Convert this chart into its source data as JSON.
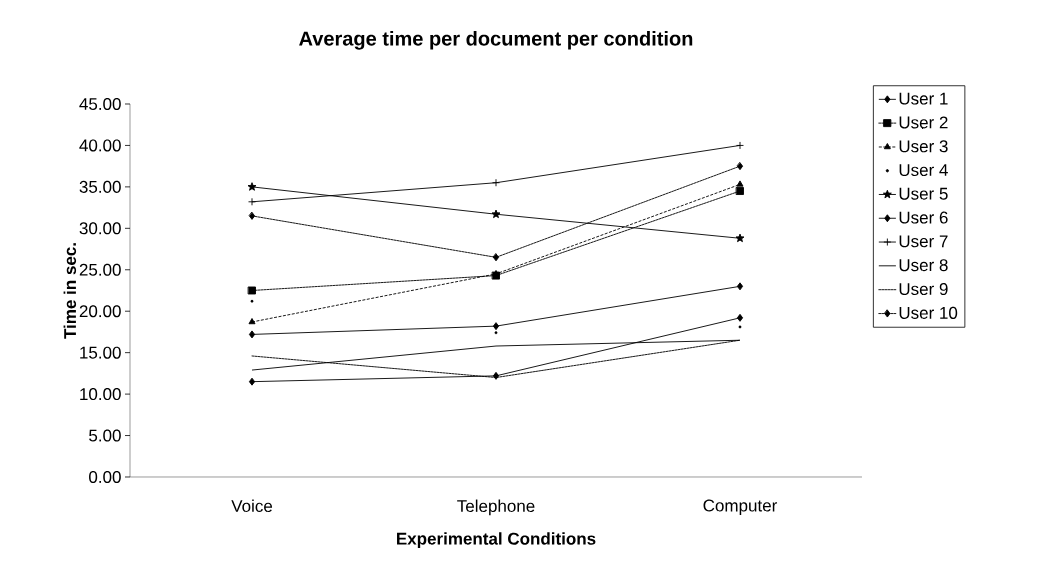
{
  "chart_data": {
    "type": "line",
    "title": "Average time per document per condition",
    "xlabel": "Experimental Conditions",
    "ylabel": "Time in sec.",
    "categories": [
      "Voice",
      "Telephone",
      "Computer"
    ],
    "ylim": [
      0,
      45
    ],
    "yticks": [
      {
        "value": 0,
        "label": "0.00"
      },
      {
        "value": 5,
        "label": "5.00"
      },
      {
        "value": 10,
        "label": "10.00"
      },
      {
        "value": 15,
        "label": "15.00"
      },
      {
        "value": 20,
        "label": "20.00"
      },
      {
        "value": 25,
        "label": "25.00"
      },
      {
        "value": 30,
        "label": "30.00"
      },
      {
        "value": 35,
        "label": "35.00"
      },
      {
        "value": 40,
        "label": "40.00"
      },
      {
        "value": 45,
        "label": "45.00"
      }
    ],
    "grid": false,
    "legend": "right",
    "series": [
      {
        "name": "User 1",
        "color": "#000000",
        "marker": "diamond",
        "line_style": "solid",
        "values": [
          11.5,
          12.2,
          19.2
        ]
      },
      {
        "name": "User 2",
        "color": "#000000",
        "marker": "square",
        "line_style": "dotted",
        "values": [
          22.5,
          24.3,
          34.5
        ]
      },
      {
        "name": "User 3",
        "color": "#000000",
        "marker": "triangle",
        "line_style": "dashed",
        "values": [
          18.7,
          24.5,
          35.3
        ]
      },
      {
        "name": "User 4",
        "type": "scatter",
        "color": "#000000",
        "marker": "circle",
        "values": [
          21.2,
          17.4,
          18.1
        ]
      },
      {
        "name": "User 5",
        "color": "#000000",
        "marker": "star",
        "line_style": "solid",
        "values": [
          35.0,
          31.7,
          28.8
        ]
      },
      {
        "name": "User 6",
        "color": "#000000",
        "marker": "diamond",
        "line_style": "solid",
        "values": [
          17.2,
          18.2,
          23.0
        ]
      },
      {
        "name": "User 7",
        "color": "#000000",
        "marker": "cross",
        "line_style": "solid",
        "values": [
          33.2,
          35.5,
          40.0
        ]
      },
      {
        "name": "User 8",
        "color": "#000000",
        "marker": "none",
        "line_style": "solid",
        "values": [
          12.9,
          15.8,
          16.5
        ]
      },
      {
        "name": "User 9",
        "color": "#000000",
        "marker": "none",
        "line_style": "dotted",
        "values": [
          14.6,
          12.0,
          16.5
        ]
      },
      {
        "name": "User 10",
        "color": "#000000",
        "marker": "diamond",
        "line_style": "dotted",
        "values": [
          31.5,
          26.5,
          37.5
        ]
      }
    ]
  }
}
